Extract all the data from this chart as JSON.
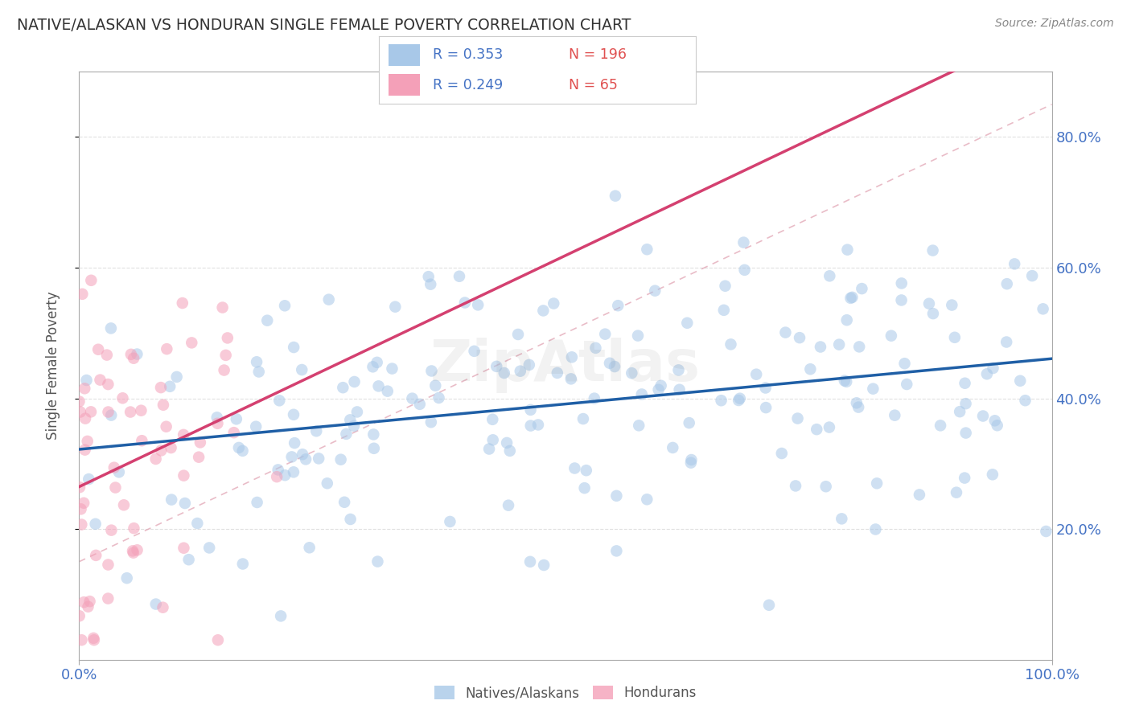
{
  "title": "NATIVE/ALASKAN VS HONDURAN SINGLE FEMALE POVERTY CORRELATION CHART",
  "source": "Source: ZipAtlas.com",
  "ylabel": "Single Female Poverty",
  "xlim": [
    0.0,
    1.0
  ],
  "ylim": [
    0.0,
    0.9
  ],
  "native_R": 0.353,
  "native_N": 196,
  "honduran_R": 0.249,
  "honduran_N": 65,
  "native_color": "#a8c8e8",
  "honduran_color": "#f4a0b8",
  "trend_native_color": "#1f5fa6",
  "trend_honduran_color": "#d44070",
  "trend_diag_color": "#e0a0b0",
  "background_color": "#ffffff",
  "grid_color": "#cccccc",
  "title_color": "#333333",
  "tick_color": "#4472c4",
  "watermark_color": "#cccccc",
  "legend_R_color": "#4472c4",
  "legend_N_color": "#e05050"
}
